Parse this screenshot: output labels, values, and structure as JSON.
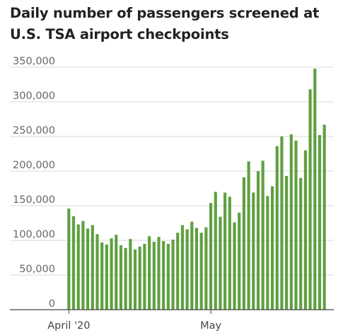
{
  "chart_data": {
    "type": "bar",
    "title": "Daily number of passengers screened at U.S. TSA airport checkpoints",
    "xlabel": "",
    "ylabel": "",
    "ylim": [
      0,
      350000
    ],
    "yticks": [
      0,
      50000,
      100000,
      150000,
      200000,
      250000,
      300000,
      350000
    ],
    "ytick_labels": [
      "0",
      "50,000",
      "100,000",
      "150,000",
      "200,000",
      "250,000",
      "300,000",
      "350,000"
    ],
    "xtick_labels": [
      {
        "label": "April '20",
        "index": 0
      },
      {
        "label": "May",
        "index": 30
      }
    ],
    "grid": true,
    "color": "#5fa040",
    "values": [
      146000,
      135000,
      123000,
      128000,
      117000,
      122000,
      109000,
      97000,
      94000,
      103000,
      108000,
      93000,
      89000,
      102000,
      87000,
      91000,
      95000,
      106000,
      98000,
      105000,
      99000,
      95000,
      101000,
      111000,
      122000,
      116000,
      127000,
      118000,
      111000,
      119000,
      154000,
      170000,
      134000,
      169000,
      163000,
      126000,
      140000,
      191000,
      214000,
      169000,
      200000,
      215000,
      164000,
      178000,
      236000,
      250000,
      193000,
      253000,
      244000,
      190000,
      230000,
      318000,
      348000,
      252000,
      267000
    ]
  }
}
